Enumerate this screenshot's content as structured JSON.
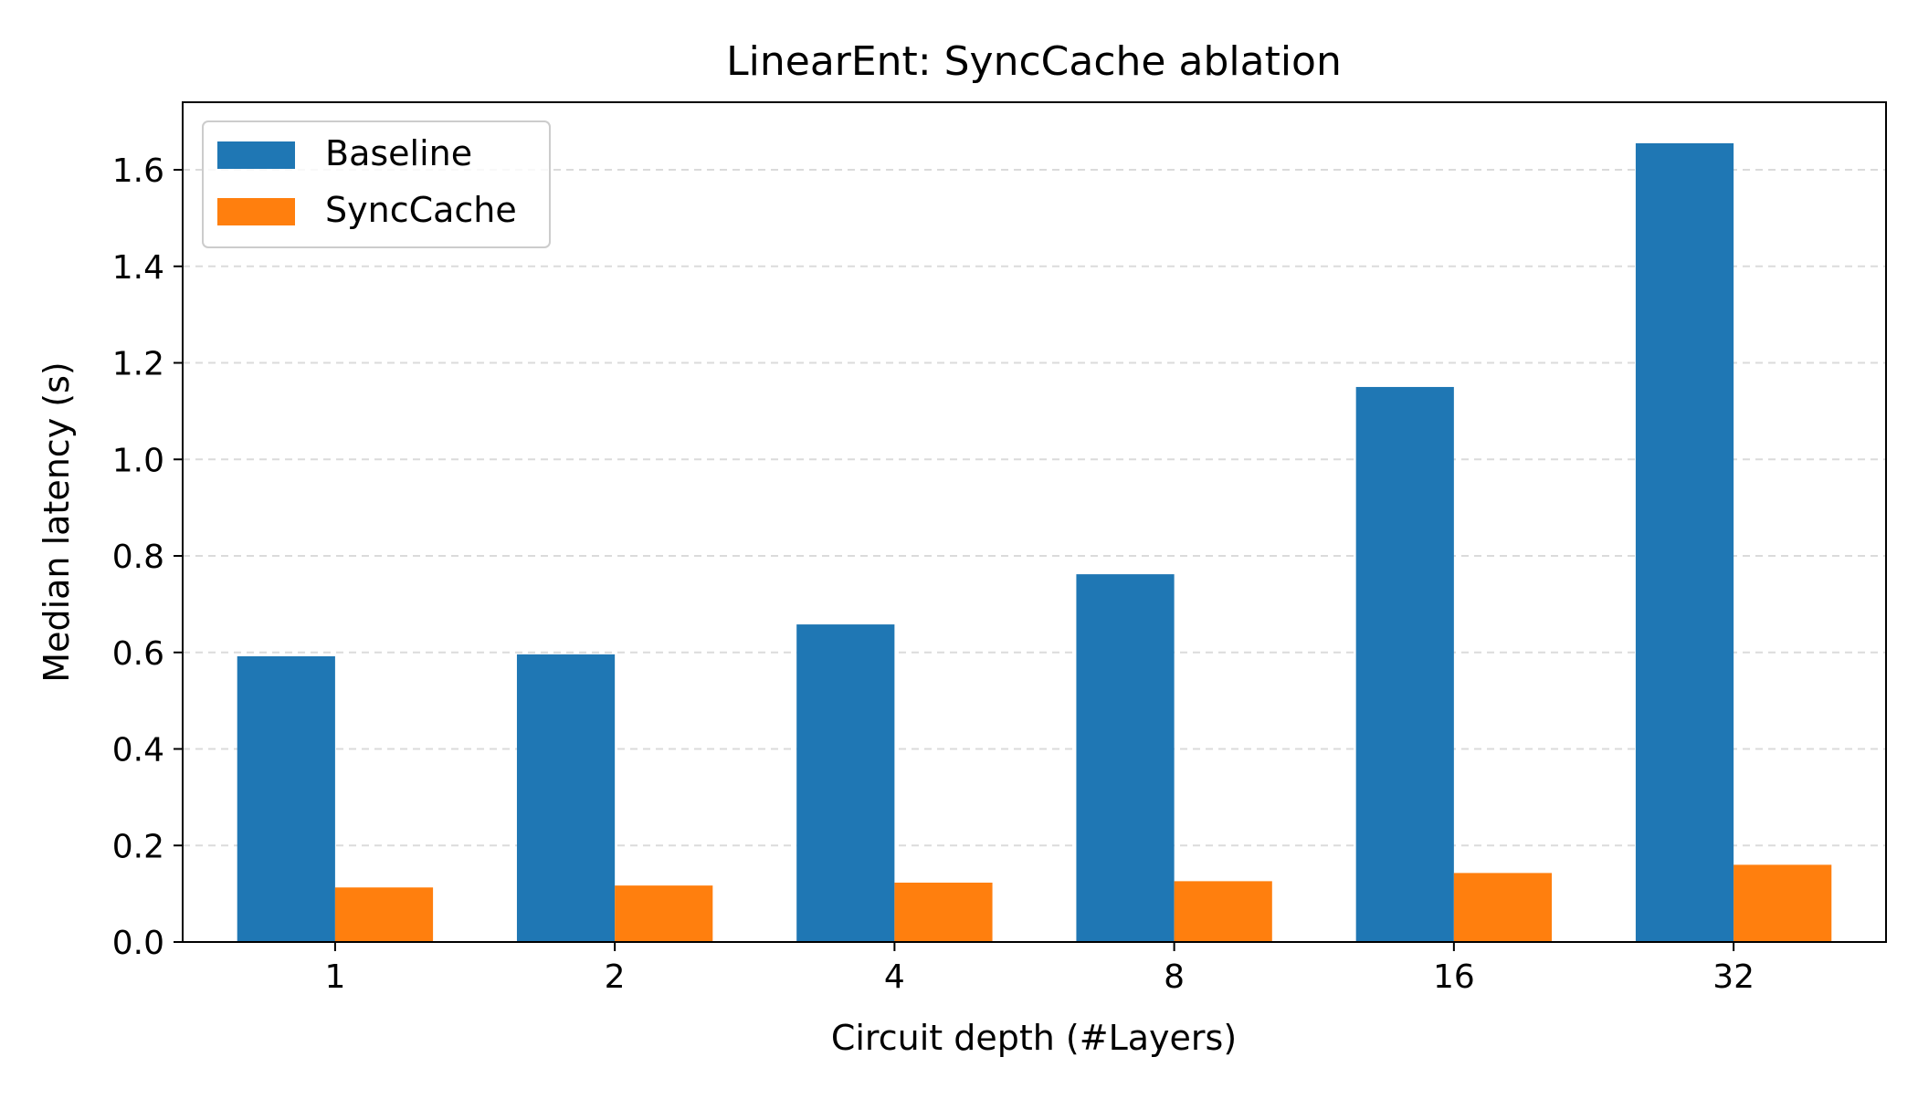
{
  "chart_data": {
    "type": "bar",
    "title": "LinearEnt: SyncCache ablation",
    "xlabel": "Circuit depth (#Layers)",
    "ylabel": "Median latency (s)",
    "categories": [
      "1",
      "2",
      "4",
      "8",
      "16",
      "32"
    ],
    "series": [
      {
        "name": "Baseline",
        "color": "#1f77b4",
        "values": [
          0.592,
          0.596,
          0.658,
          0.762,
          1.15,
          1.655
        ]
      },
      {
        "name": "SyncCache",
        "color": "#ff7f0e",
        "values": [
          0.113,
          0.117,
          0.123,
          0.126,
          0.143,
          0.16
        ]
      }
    ],
    "ylim": [
      0,
      1.74
    ],
    "yticks": [
      0.0,
      0.2,
      0.4,
      0.6,
      0.8,
      1.0,
      1.2,
      1.4,
      1.6
    ],
    "ytick_labels": [
      "0.0",
      "0.2",
      "0.4",
      "0.6",
      "0.8",
      "1.0",
      "1.2",
      "1.4",
      "1.6"
    ],
    "grid": "horizontal-dashed",
    "legend": "top-left"
  }
}
